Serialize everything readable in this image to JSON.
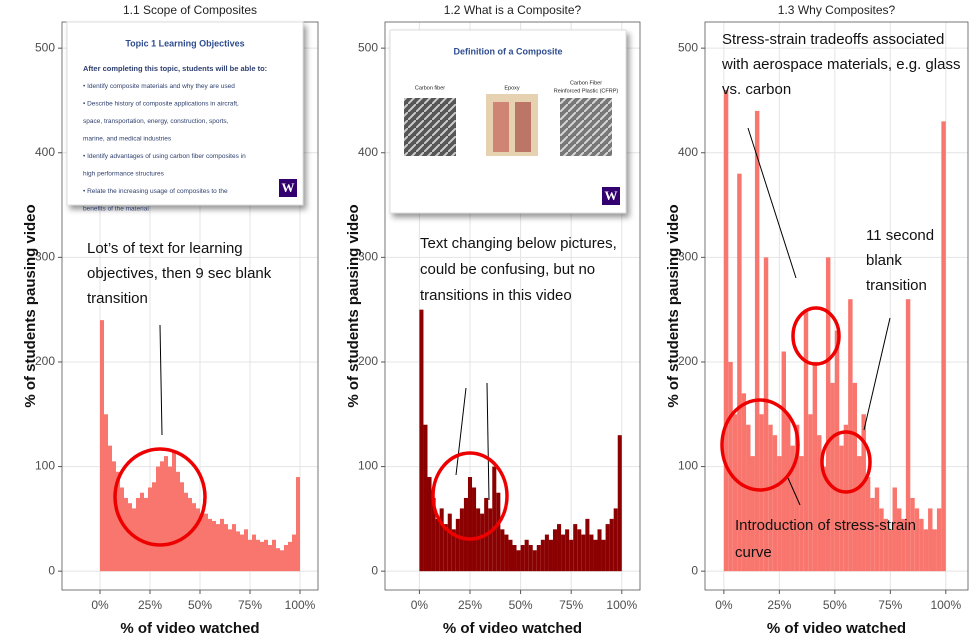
{
  "chart_data": [
    {
      "type": "histogram",
      "title": "1.1 Scope of Composites",
      "x_label": "% of video watched",
      "y_label": "% of students pausing video",
      "color": "#f8766d",
      "bins": [
        0,
        2,
        4,
        6,
        8,
        10,
        12,
        14,
        16,
        18,
        20,
        22,
        24,
        26,
        28,
        30,
        32,
        34,
        36,
        38,
        40,
        42,
        44,
        46,
        48,
        50,
        52,
        54,
        56,
        58,
        60,
        62,
        64,
        66,
        68,
        70,
        72,
        74,
        76,
        78,
        80,
        82,
        84,
        86,
        88,
        90,
        92,
        94,
        96,
        98,
        100
      ],
      "values": [
        240,
        150,
        120,
        105,
        95,
        80,
        70,
        65,
        60,
        70,
        75,
        70,
        80,
        85,
        100,
        105,
        110,
        100,
        115,
        95,
        85,
        75,
        70,
        65,
        60,
        55,
        55,
        50,
        48,
        45,
        50,
        45,
        40,
        45,
        38,
        35,
        40,
        30,
        35,
        30,
        28,
        30,
        25,
        30,
        22,
        20,
        25,
        28,
        35,
        90
      ],
      "xlim": [
        -19,
        109
      ],
      "ylim": [
        -18,
        525
      ],
      "grid": true,
      "xticks": [
        {
          "value": 0,
          "label": "0%"
        },
        {
          "value": 25,
          "label": "25%"
        },
        {
          "value": 50,
          "label": "50%"
        },
        {
          "value": 75,
          "label": "75%"
        },
        {
          "value": 100,
          "label": "100%"
        }
      ],
      "yticks": [
        0,
        100,
        200,
        300,
        400,
        500
      ],
      "slide": {
        "title": "Topic 1 Learning Objectives",
        "lines": [
          "After completing this topic, students will be able to:",
          "• Identify composite materials and why they are used",
          "• Describe history of composite applications in aircraft,",
          "space, transportation, energy, construction, sports,",
          "marine, and medical industries",
          "• Identify advantages of using carbon fiber composites in",
          "high performance structures",
          "• Relate the increasing usage of composites to the",
          "benefits of the material"
        ],
        "logo": "W"
      },
      "annotations": [
        [
          "Lot’s of text for learning",
          "objectives, then 9 sec blank",
          "transition"
        ]
      ]
    },
    {
      "type": "histogram",
      "title": "1.2 What is a Composite?",
      "x_label": "% of video watched",
      "y_label": "% of students pausing video",
      "color": "#8b0000",
      "bins": [
        0,
        2,
        4,
        6,
        8,
        10,
        12,
        14,
        16,
        18,
        20,
        22,
        24,
        26,
        28,
        30,
        32,
        34,
        36,
        38,
        40,
        42,
        44,
        46,
        48,
        50,
        52,
        54,
        56,
        58,
        60,
        62,
        64,
        66,
        68,
        70,
        72,
        74,
        76,
        78,
        80,
        82,
        84,
        86,
        88,
        90,
        92,
        94,
        96,
        98,
        100
      ],
      "values": [
        250,
        140,
        90,
        70,
        50,
        60,
        45,
        55,
        40,
        50,
        60,
        70,
        90,
        80,
        60,
        55,
        70,
        60,
        100,
        75,
        40,
        35,
        30,
        25,
        20,
        25,
        30,
        25,
        20,
        25,
        30,
        35,
        30,
        40,
        45,
        35,
        40,
        30,
        45,
        40,
        35,
        50,
        35,
        30,
        40,
        30,
        45,
        50,
        60,
        130
      ],
      "xlim": [
        -17,
        109
      ],
      "ylim": [
        -18,
        525
      ],
      "grid": true,
      "xticks": [
        {
          "value": 0,
          "label": "0%"
        },
        {
          "value": 25,
          "label": "25%"
        },
        {
          "value": 50,
          "label": "50%"
        },
        {
          "value": 75,
          "label": "75%"
        },
        {
          "value": 100,
          "label": "100%"
        }
      ],
      "yticks": [
        0,
        100,
        200,
        300,
        400,
        500
      ],
      "slide": {
        "title": "Definition of a Composite",
        "labels": [
          "Carbon fiber",
          "Epoxy",
          "Carbon Fiber",
          "Reinforced Plastic (CFRP)"
        ],
        "logo": "W"
      },
      "annotations": [
        [
          "Text changing below pictures,",
          "could be confusing, but no",
          "transitions in this video"
        ]
      ]
    },
    {
      "type": "histogram",
      "title": "1.3 Why Composites?",
      "x_label": "% of video watched",
      "y_label": "% of students pausing video",
      "color": "#f8766d",
      "bins": [
        0,
        2,
        4,
        6,
        8,
        10,
        12,
        14,
        16,
        18,
        20,
        22,
        24,
        26,
        28,
        30,
        32,
        34,
        36,
        38,
        40,
        42,
        44,
        46,
        48,
        50,
        52,
        54,
        56,
        58,
        60,
        62,
        64,
        66,
        68,
        70,
        72,
        74,
        76,
        78,
        80,
        82,
        84,
        86,
        88,
        90,
        92,
        94,
        96,
        98,
        100
      ],
      "values": [
        460,
        200,
        150,
        380,
        170,
        140,
        110,
        440,
        150,
        300,
        140,
        130,
        110,
        210,
        150,
        120,
        140,
        110,
        250,
        150,
        200,
        130,
        100,
        300,
        180,
        230,
        120,
        140,
        260,
        180,
        110,
        150,
        90,
        70,
        80,
        60,
        50,
        40,
        80,
        60,
        50,
        260,
        70,
        60,
        50,
        40,
        60,
        40,
        60,
        430
      ],
      "xlim": [
        -8.5,
        110
      ],
      "ylim": [
        -18,
        525
      ],
      "grid": true,
      "xticks": [
        {
          "value": 0,
          "label": "0%"
        },
        {
          "value": 25,
          "label": "25%"
        },
        {
          "value": 50,
          "label": "50%"
        },
        {
          "value": 75,
          "label": "75%"
        },
        {
          "value": 100,
          "label": "100%"
        }
      ],
      "yticks": [
        0,
        100,
        200,
        300,
        400,
        500
      ],
      "annotations": [
        [
          "Stress-strain tradeoffs associated",
          "with aerospace materials, e.g. glass",
          "vs. carbon"
        ],
        [
          "11 second",
          "blank",
          "transition"
        ],
        [
          "Introduction of stress-strain",
          "curve"
        ]
      ]
    }
  ]
}
